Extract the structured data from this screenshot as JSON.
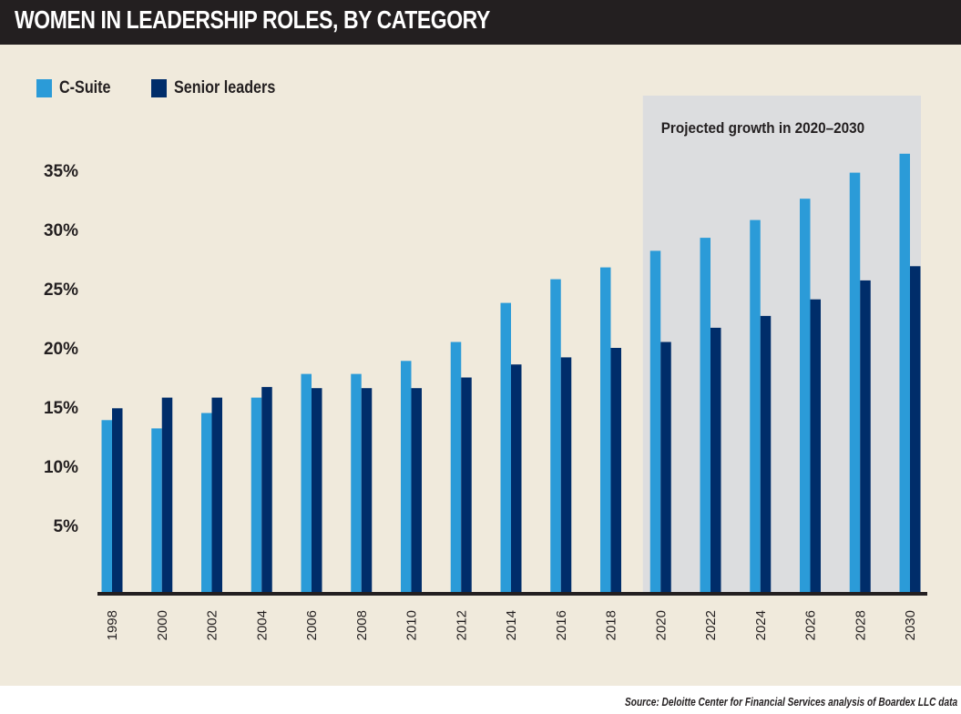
{
  "header": {
    "title": "WOMEN IN LEADERSHIP ROLES, BY CATEGORY"
  },
  "colors": {
    "csuite": "#2b9bd8",
    "senior": "#002d6a",
    "background": "#f0eadc",
    "projection_band": "#dcdddf",
    "header": "#231f20",
    "text": "#231f20"
  },
  "source": "Source: Deloitte Center for Financial Services analysis of Boardex LLC data",
  "chart_data": {
    "type": "bar",
    "title": "WOMEN IN LEADERSHIP ROLES, BY CATEGORY",
    "xlabel": "",
    "ylabel": "",
    "categories": [
      "1998",
      "2000",
      "2002",
      "2004",
      "2006",
      "2008",
      "2010",
      "2012",
      "2014",
      "2016",
      "2018",
      "2020",
      "2022",
      "2024",
      "2026",
      "2028",
      "2030"
    ],
    "series": [
      {
        "name": "C-Suite",
        "color": "#2b9bd8",
        "values": [
          13.9,
          13.2,
          14.5,
          15.8,
          17.8,
          17.8,
          18.9,
          20.5,
          23.8,
          25.8,
          26.8,
          28.2,
          29.3,
          30.8,
          32.6,
          34.8,
          36.4
        ]
      },
      {
        "name": "Senior leaders",
        "color": "#002d6a",
        "values": [
          14.9,
          15.8,
          15.8,
          16.7,
          16.6,
          16.6,
          16.6,
          17.5,
          18.6,
          19.2,
          20.0,
          20.5,
          21.7,
          22.7,
          24.1,
          25.7,
          26.9
        ]
      }
    ],
    "yticks": [
      5,
      10,
      15,
      20,
      25,
      30,
      35
    ],
    "ytick_labels": [
      "5%",
      "10%",
      "15%",
      "20%",
      "25%",
      "30%",
      "35%"
    ],
    "ylim": [
      0,
      38
    ],
    "grid": false,
    "legend": {
      "position": "top-left",
      "entries": [
        "C-Suite",
        "Senior leaders"
      ]
    },
    "annotations": [
      {
        "text": "Projected growth in 2020–2030",
        "range": [
          "2020",
          "2030"
        ],
        "kind": "shaded-band"
      }
    ]
  }
}
